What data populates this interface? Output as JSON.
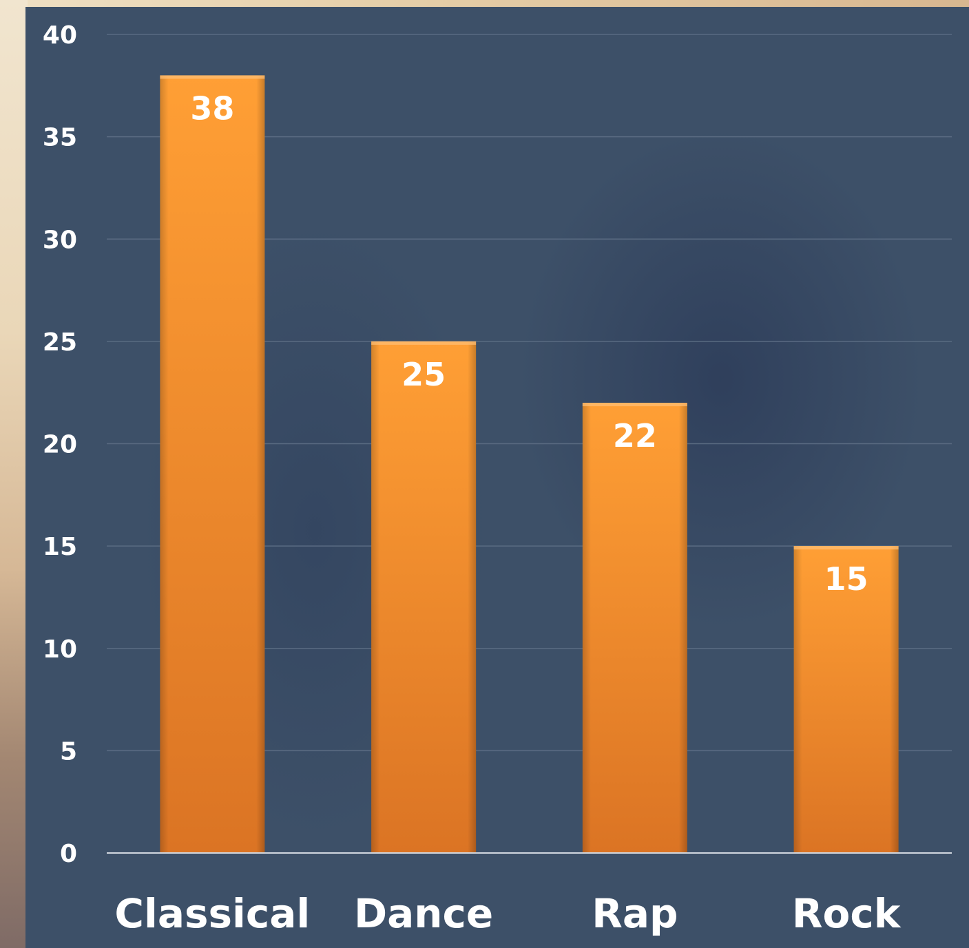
{
  "chart_data": {
    "type": "bar",
    "categories": [
      "Classical",
      "Dance",
      "Rap",
      "Rock"
    ],
    "values": [
      38,
      25,
      22,
      15
    ],
    "title": "",
    "xlabel": "",
    "ylabel": "",
    "ylim": [
      0,
      40
    ],
    "yticks": [
      "0",
      "5",
      "10",
      "15",
      "20",
      "25",
      "30",
      "35",
      "40"
    ],
    "grid": true,
    "legend": "none",
    "bar_color": "#f7922e",
    "background_color": "#3d5068",
    "label_color": "#ffffff"
  }
}
